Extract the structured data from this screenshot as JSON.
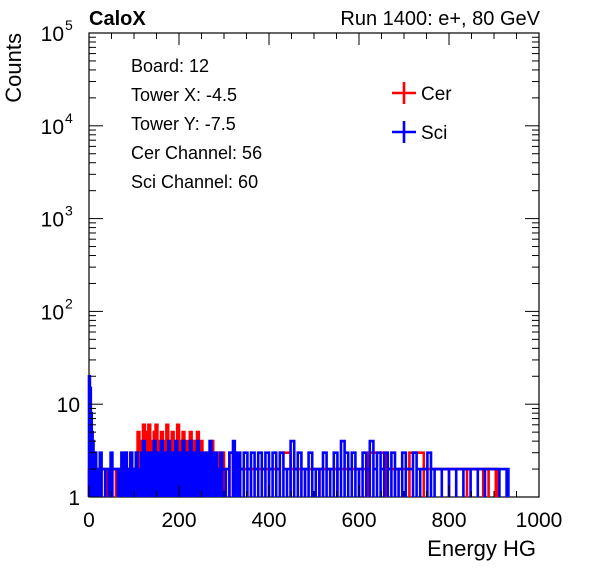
{
  "header": {
    "left": "CaloX",
    "right": "Run 1400: e+, 80 GeV"
  },
  "info_box": [
    "Board: 12",
    "Tower X: -4.5",
    "Tower Y: -7.5",
    "Cer Channel: 56",
    "Sci Channel: 60"
  ],
  "colors": {
    "cer": "#ff0000",
    "sci": "#0000ff",
    "axis": "#000000"
  },
  "chart_data": {
    "type": "line",
    "title": "",
    "xlabel": "Energy HG",
    "ylabel": "Counts",
    "xlim": [
      0,
      1000
    ],
    "ylim": [
      1,
      100000
    ],
    "yscale": "log",
    "grid": false,
    "legend_position": "top-right",
    "x_ticks": [
      "0",
      "200",
      "400",
      "600",
      "800",
      "1000"
    ],
    "y_ticks": [
      {
        "value": 1,
        "base": "1",
        "exp": ""
      },
      {
        "value": 10,
        "base": "10",
        "exp": ""
      },
      {
        "value": 100,
        "base": "10",
        "exp": "2"
      },
      {
        "value": 1000,
        "base": "10",
        "exp": "3"
      },
      {
        "value": 10000,
        "base": "10",
        "exp": "4"
      },
      {
        "value": 100000,
        "base": "10",
        "exp": "5"
      }
    ],
    "series": [
      {
        "name": "Cer",
        "color": "#ff0000",
        "points": [
          [
            0,
            2
          ],
          [
            4,
            3
          ],
          [
            16,
            2
          ],
          [
            36,
            2
          ],
          [
            40,
            2
          ],
          [
            60,
            2
          ],
          [
            72,
            2
          ],
          [
            80,
            3
          ],
          [
            84,
            2
          ],
          [
            88,
            2
          ],
          [
            92,
            3
          ],
          [
            96,
            2
          ],
          [
            100,
            2
          ],
          [
            104,
            3
          ],
          [
            108,
            5
          ],
          [
            112,
            4
          ],
          [
            116,
            3
          ],
          [
            120,
            6
          ],
          [
            124,
            4
          ],
          [
            128,
            5
          ],
          [
            132,
            6
          ],
          [
            136,
            3
          ],
          [
            140,
            4
          ],
          [
            144,
            5
          ],
          [
            148,
            6
          ],
          [
            152,
            3
          ],
          [
            156,
            4
          ],
          [
            160,
            5
          ],
          [
            164,
            3
          ],
          [
            168,
            4
          ],
          [
            172,
            6
          ],
          [
            176,
            3
          ],
          [
            180,
            4
          ],
          [
            184,
            5
          ],
          [
            188,
            3
          ],
          [
            192,
            4
          ],
          [
            196,
            6
          ],
          [
            200,
            4
          ],
          [
            204,
            3
          ],
          [
            208,
            5
          ],
          [
            212,
            4
          ],
          [
            216,
            3
          ],
          [
            220,
            4
          ],
          [
            224,
            5
          ],
          [
            228,
            3
          ],
          [
            232,
            4
          ],
          [
            236,
            3
          ],
          [
            240,
            5
          ],
          [
            244,
            3
          ],
          [
            248,
            4
          ],
          [
            252,
            3
          ],
          [
            256,
            2
          ],
          [
            260,
            3
          ],
          [
            264,
            2
          ],
          [
            268,
            3
          ],
          [
            272,
            4
          ],
          [
            276,
            3
          ],
          [
            280,
            2
          ],
          [
            284,
            3
          ],
          [
            288,
            2
          ],
          [
            292,
            2
          ],
          [
            296,
            3
          ],
          [
            300,
            2
          ],
          [
            304,
            2
          ],
          [
            312,
            3
          ],
          [
            320,
            2
          ],
          [
            336,
            2
          ],
          [
            344,
            2
          ],
          [
            360,
            2
          ],
          [
            384,
            2
          ],
          [
            400,
            2
          ],
          [
            424,
            3
          ],
          [
            448,
            2
          ],
          [
            464,
            2
          ],
          [
            480,
            2
          ],
          [
            512,
            2
          ],
          [
            520,
            2
          ],
          [
            536,
            2
          ],
          [
            552,
            2
          ],
          [
            600,
            2
          ],
          [
            620,
            3
          ],
          [
            660,
            2
          ],
          [
            680,
            2
          ],
          [
            712,
            3
          ],
          [
            744,
            2
          ],
          [
            800,
            2
          ],
          [
            840,
            2
          ],
          [
            876,
            2
          ],
          [
            888,
            2
          ],
          [
            904,
            2
          ]
        ]
      },
      {
        "name": "Sci",
        "color": "#0000ff",
        "points": [
          [
            0,
            20
          ],
          [
            2,
            15
          ],
          [
            4,
            8
          ],
          [
            6,
            5
          ],
          [
            8,
            4
          ],
          [
            10,
            2
          ],
          [
            12,
            3
          ],
          [
            16,
            2
          ],
          [
            20,
            2
          ],
          [
            24,
            3
          ],
          [
            28,
            2
          ],
          [
            36,
            2
          ],
          [
            44,
            2
          ],
          [
            48,
            3
          ],
          [
            52,
            2
          ],
          [
            64,
            2
          ],
          [
            68,
            2
          ],
          [
            72,
            3
          ],
          [
            76,
            2
          ],
          [
            80,
            3
          ],
          [
            84,
            2
          ],
          [
            88,
            2
          ],
          [
            92,
            3
          ],
          [
            96,
            2
          ],
          [
            100,
            2
          ],
          [
            104,
            3
          ],
          [
            108,
            2
          ],
          [
            112,
            2
          ],
          [
            116,
            3
          ],
          [
            120,
            4
          ],
          [
            124,
            3
          ],
          [
            128,
            2
          ],
          [
            132,
            3
          ],
          [
            136,
            2
          ],
          [
            140,
            3
          ],
          [
            144,
            4
          ],
          [
            148,
            3
          ],
          [
            152,
            2
          ],
          [
            156,
            3
          ],
          [
            160,
            4
          ],
          [
            164,
            3
          ],
          [
            168,
            2
          ],
          [
            172,
            3
          ],
          [
            176,
            4
          ],
          [
            180,
            3
          ],
          [
            184,
            2
          ],
          [
            188,
            3
          ],
          [
            192,
            4
          ],
          [
            196,
            3
          ],
          [
            200,
            2
          ],
          [
            204,
            3
          ],
          [
            208,
            4
          ],
          [
            212,
            3
          ],
          [
            216,
            2
          ],
          [
            220,
            3
          ],
          [
            224,
            4
          ],
          [
            228,
            3
          ],
          [
            232,
            2
          ],
          [
            236,
            3
          ],
          [
            240,
            4
          ],
          [
            244,
            3
          ],
          [
            248,
            3
          ],
          [
            252,
            2
          ],
          [
            256,
            3
          ],
          [
            260,
            2
          ],
          [
            264,
            3
          ],
          [
            268,
            4
          ],
          [
            272,
            3
          ],
          [
            276,
            2
          ],
          [
            280,
            3
          ],
          [
            284,
            2
          ],
          [
            288,
            2
          ],
          [
            292,
            3
          ],
          [
            296,
            2
          ],
          [
            304,
            2
          ],
          [
            312,
            3
          ],
          [
            320,
            4
          ],
          [
            324,
            3
          ],
          [
            328,
            2
          ],
          [
            332,
            3
          ],
          [
            336,
            2
          ],
          [
            344,
            3
          ],
          [
            352,
            2
          ],
          [
            360,
            3
          ],
          [
            368,
            2
          ],
          [
            376,
            3
          ],
          [
            384,
            2
          ],
          [
            392,
            3
          ],
          [
            400,
            2
          ],
          [
            408,
            3
          ],
          [
            416,
            2
          ],
          [
            424,
            3
          ],
          [
            432,
            2
          ],
          [
            440,
            2
          ],
          [
            448,
            4
          ],
          [
            456,
            2
          ],
          [
            464,
            3
          ],
          [
            472,
            2
          ],
          [
            480,
            2
          ],
          [
            488,
            3
          ],
          [
            496,
            2
          ],
          [
            504,
            2
          ],
          [
            512,
            2
          ],
          [
            520,
            3
          ],
          [
            528,
            2
          ],
          [
            536,
            2
          ],
          [
            544,
            3
          ],
          [
            552,
            2
          ],
          [
            560,
            4
          ],
          [
            568,
            3
          ],
          [
            576,
            2
          ],
          [
            584,
            3
          ],
          [
            592,
            2
          ],
          [
            600,
            2
          ],
          [
            608,
            3
          ],
          [
            616,
            2
          ],
          [
            624,
            4
          ],
          [
            632,
            2
          ],
          [
            640,
            3
          ],
          [
            648,
            2
          ],
          [
            656,
            3
          ],
          [
            664,
            2
          ],
          [
            672,
            3
          ],
          [
            680,
            2
          ],
          [
            688,
            2
          ],
          [
            696,
            3
          ],
          [
            704,
            2
          ],
          [
            720,
            3
          ],
          [
            728,
            2
          ],
          [
            736,
            2
          ],
          [
            752,
            3
          ],
          [
            760,
            2
          ],
          [
            768,
            2
          ],
          [
            784,
            2
          ],
          [
            800,
            2
          ],
          [
            816,
            2
          ],
          [
            832,
            2
          ],
          [
            848,
            2
          ],
          [
            864,
            2
          ],
          [
            880,
            2
          ],
          [
            912,
            2
          ],
          [
            928,
            2
          ]
        ]
      }
    ]
  }
}
